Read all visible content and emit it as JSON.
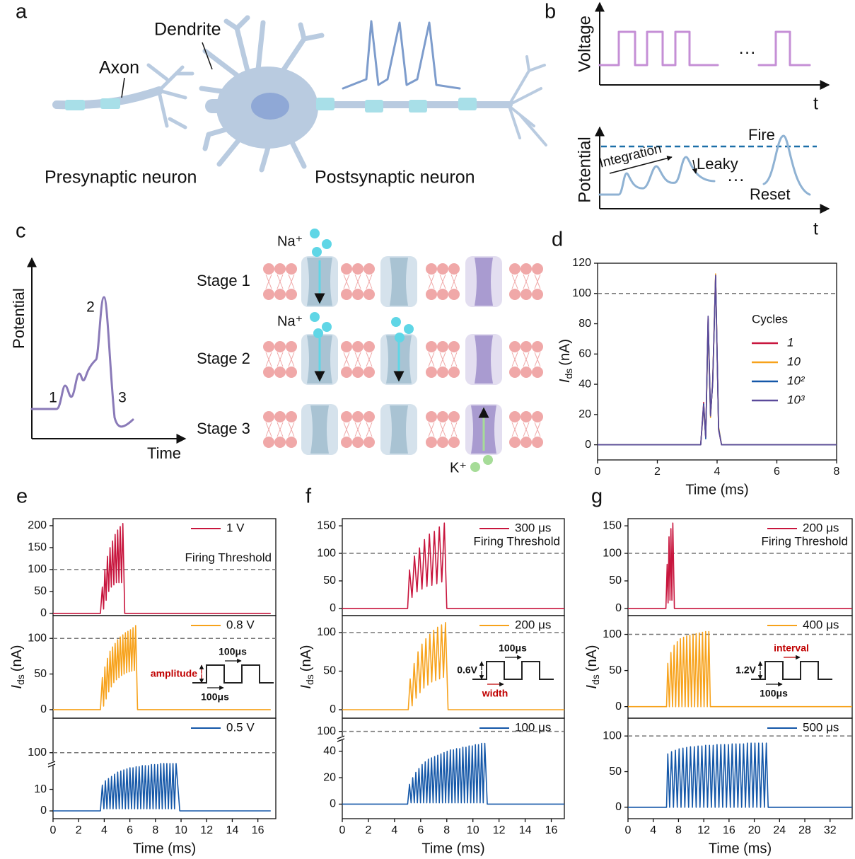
{
  "panels": {
    "a": {
      "label": "a",
      "dendrite": "Dendrite",
      "axon": "Axon",
      "presynaptic": "Presynaptic neuron",
      "postsynaptic": "Postsynaptic neuron"
    },
    "b": {
      "label": "b",
      "voltage": "Voltage",
      "t_top": "t",
      "dots_top": "···",
      "potential": "Potential",
      "integration": "Integration",
      "leaky": "Leaky",
      "fire": "Fire",
      "reset": "Reset",
      "dots_bottom": "···",
      "t_bottom": "t"
    },
    "c": {
      "label": "c",
      "potential": "Potential",
      "time": "Time",
      "points": [
        "1",
        "2",
        "3"
      ],
      "stages": [
        "Stage 1",
        "Stage 2",
        "Stage 3"
      ],
      "na_1": "Na⁺",
      "na_2": "Na⁺",
      "k": "K⁺"
    }
  },
  "chart_data": [
    {
      "type": "line",
      "panel_label": "d",
      "xlim": [
        0,
        8
      ],
      "xticks": [
        0,
        2,
        4,
        6,
        8
      ],
      "ylim": [
        -10,
        120
      ],
      "yticks": [
        0,
        20,
        40,
        60,
        80,
        100,
        120
      ],
      "threshold": 100,
      "xlabel": "Time (ms)",
      "ylabel": {
        "symbol": "I",
        "subscript": "ds",
        "unit": "(nA)"
      },
      "legend_title": "Cycles",
      "x": [
        0,
        3.45,
        3.55,
        3.62,
        3.7,
        3.78,
        3.85,
        3.95,
        4.05,
        4.15,
        8
      ],
      "series": [
        {
          "name": "1",
          "color": "#c8163e",
          "values": [
            0,
            0,
            28,
            5,
            84,
            20,
            40,
            112,
            10,
            0,
            0
          ]
        },
        {
          "name": "10",
          "color": "#f7a21b",
          "values": [
            0,
            0,
            25,
            5,
            80,
            18,
            42,
            113,
            12,
            0,
            0
          ]
        },
        {
          "name": "10²",
          "color": "#1457a8",
          "values": [
            0,
            0,
            27,
            4,
            83,
            20,
            40,
            111,
            11,
            0,
            0
          ]
        },
        {
          "name": "10³",
          "color": "#5a4a9a",
          "values": [
            0,
            0,
            26,
            5,
            85,
            19,
            41,
            112,
            10,
            0,
            0
          ]
        }
      ]
    },
    {
      "type": "line",
      "panel_label": "e",
      "xlim": [
        0,
        17.4
      ],
      "ylim": [
        -5,
        216
      ],
      "yticks": [
        0,
        50,
        100,
        150,
        200
      ],
      "threshold": 100,
      "threshold_label": "Firing Threshold",
      "x": [
        0,
        3.7,
        3.85,
        3.95,
        4.05,
        4.15,
        4.25,
        4.35,
        4.45,
        4.55,
        4.65,
        4.75,
        4.85,
        4.95,
        5.05,
        5.15,
        5.25,
        5.35,
        5.45,
        5.6,
        17
      ],
      "series": [
        {
          "name": "1 V",
          "color": "#c8163e",
          "values": [
            0,
            0,
            60,
            10,
            100,
            30,
            130,
            50,
            150,
            60,
            165,
            65,
            180,
            70,
            190,
            70,
            198,
            70,
            205,
            0,
            0
          ]
        }
      ]
    },
    {
      "type": "line",
      "xlim": [
        0,
        17.4
      ],
      "ylim": [
        -12,
        132
      ],
      "yticks": [
        0,
        50,
        100
      ],
      "threshold": 100,
      "ylabel": {
        "symbol": "I",
        "subscript": "ds",
        "unit": "(nA)"
      },
      "inset": {
        "top": "100μs",
        "left": "amplitude",
        "bottom": "100μs",
        "highlight": "left"
      },
      "x": [
        0,
        3.7,
        3.85,
        3.95,
        4.05,
        4.15,
        4.25,
        4.35,
        4.45,
        4.55,
        4.65,
        4.75,
        4.85,
        4.95,
        5.05,
        5.15,
        5.25,
        5.35,
        5.45,
        5.55,
        5.65,
        5.75,
        5.85,
        5.95,
        6.05,
        6.15,
        6.25,
        6.35,
        6.45,
        6.6,
        17
      ],
      "series": [
        {
          "name": "0.8 V",
          "color": "#f7a21b",
          "values": [
            0,
            0,
            45,
            5,
            60,
            15,
            72,
            25,
            82,
            32,
            88,
            38,
            93,
            42,
            98,
            45,
            102,
            48,
            105,
            50,
            108,
            52,
            110,
            53,
            112,
            54,
            115,
            55,
            118,
            0,
            0
          ]
        }
      ]
    },
    {
      "type": "line",
      "xlim": [
        0,
        17.4
      ],
      "xticks": [
        0,
        2,
        4,
        6,
        8,
        10,
        12,
        14,
        16
      ],
      "xlabel": "Time (ms)",
      "ylim": [
        -3.6,
        116
      ],
      "ybreak": [
        22,
        95
      ],
      "yticks": [
        0,
        10,
        100
      ],
      "threshold": 100,
      "x": [
        0,
        3.7,
        3.85,
        3.97,
        4.09,
        4.21,
        4.33,
        4.45,
        4.57,
        4.69,
        4.81,
        4.93,
        5.05,
        5.17,
        5.29,
        5.41,
        5.53,
        5.65,
        5.77,
        5.89,
        6.01,
        6.13,
        6.25,
        6.37,
        6.49,
        6.61,
        6.73,
        6.85,
        6.97,
        7.09,
        7.21,
        7.33,
        7.45,
        7.57,
        7.69,
        7.81,
        7.93,
        8.05,
        8.17,
        8.29,
        8.41,
        8.53,
        8.65,
        8.77,
        8.89,
        9.01,
        9.13,
        9.25,
        9.37,
        9.49,
        9.61,
        9.9,
        17
      ],
      "series": [
        {
          "name": "0.5 V",
          "color": "#1457a8",
          "values": [
            0,
            0,
            12,
            1,
            14,
            1,
            15,
            1,
            16,
            1,
            17,
            1,
            18,
            1,
            18.5,
            1,
            19,
            1,
            19.5,
            1,
            20,
            1,
            20,
            1,
            20.5,
            1,
            20.5,
            1,
            21,
            1,
            21,
            1,
            21,
            1,
            21.5,
            1,
            21.5,
            1,
            21.5,
            1,
            22,
            1,
            22,
            1,
            22,
            1,
            22,
            1,
            22,
            1,
            22,
            0,
            0
          ]
        }
      ]
    },
    {
      "type": "line",
      "panel_label": "f",
      "xlim": [
        0,
        17
      ],
      "ylim": [
        -13,
        163
      ],
      "yticks": [
        0,
        50,
        100,
        150
      ],
      "threshold": 100,
      "threshold_label": "Firing Threshold",
      "x": [
        0,
        5.0,
        5.15,
        5.34,
        5.53,
        5.72,
        5.91,
        6.1,
        6.29,
        6.48,
        6.67,
        6.86,
        7.05,
        7.24,
        7.43,
        7.62,
        7.81,
        8.0,
        17
      ],
      "series": [
        {
          "name": "300 μs",
          "color": "#c8163e",
          "values": [
            0,
            0,
            70,
            20,
            95,
            30,
            110,
            35,
            125,
            40,
            135,
            42,
            140,
            45,
            148,
            48,
            155,
            0,
            0
          ]
        }
      ]
    },
    {
      "type": "line",
      "xlim": [
        0,
        17
      ],
      "ylim": [
        -11,
        122
      ],
      "yticks": [
        0,
        50,
        100
      ],
      "threshold": 100,
      "ylabel": {
        "symbol": "I",
        "subscript": "ds",
        "unit": "(nA)"
      },
      "inset": {
        "top": "100μs",
        "left": "0.6V",
        "bottom": "width",
        "highlight": "bottom"
      },
      "x": [
        0,
        5.05,
        5.2,
        5.35,
        5.5,
        5.65,
        5.8,
        5.95,
        6.1,
        6.25,
        6.4,
        6.55,
        6.7,
        6.85,
        7.0,
        7.15,
        7.3,
        7.45,
        7.6,
        7.75,
        7.9,
        8.1,
        17
      ],
      "series": [
        {
          "name": "200 μs",
          "color": "#f7a21b",
          "values": [
            0,
            0,
            40,
            5,
            60,
            15,
            75,
            22,
            85,
            28,
            92,
            32,
            98,
            36,
            103,
            38,
            107,
            40,
            110,
            42,
            113,
            0,
            0
          ]
        }
      ]
    },
    {
      "type": "line",
      "xlim": [
        0,
        17
      ],
      "xticks": [
        0,
        2,
        4,
        6,
        8,
        10,
        12,
        14,
        16
      ],
      "xlabel": "Time (ms)",
      "ylim": [
        -11,
        110
      ],
      "ybreak": [
        50,
        95
      ],
      "yticks": [
        0,
        20,
        40,
        100
      ],
      "threshold": 100,
      "x": [
        0,
        5.0,
        5.15,
        5.27,
        5.39,
        5.51,
        5.63,
        5.75,
        5.87,
        5.99,
        6.11,
        6.23,
        6.35,
        6.47,
        6.59,
        6.71,
        6.83,
        6.95,
        7.07,
        7.19,
        7.31,
        7.43,
        7.55,
        7.67,
        7.79,
        7.91,
        8.03,
        8.15,
        8.27,
        8.39,
        8.51,
        8.63,
        8.75,
        8.87,
        8.99,
        9.11,
        9.23,
        9.35,
        9.47,
        9.59,
        9.71,
        9.83,
        9.95,
        10.07,
        10.19,
        10.31,
        10.43,
        10.55,
        10.67,
        10.79,
        10.91,
        11.1,
        17
      ],
      "series": [
        {
          "name": "100 μs",
          "color": "#1457a8",
          "values": [
            0,
            0,
            15,
            1,
            20,
            1,
            24,
            1,
            27,
            1,
            30,
            1,
            32,
            1,
            34,
            1,
            35,
            1,
            36,
            1,
            37,
            1,
            38,
            1,
            39,
            1,
            40,
            1,
            41,
            1,
            41,
            1,
            42,
            1,
            42,
            1,
            43,
            1,
            43,
            1,
            44,
            1,
            44,
            1,
            45,
            1,
            45,
            1,
            46,
            1,
            46,
            0,
            0
          ]
        }
      ]
    },
    {
      "type": "line",
      "panel_label": "g",
      "xlim": [
        0,
        35.5
      ],
      "ylim": [
        -13,
        163
      ],
      "yticks": [
        0,
        50,
        100,
        150
      ],
      "threshold": 100,
      "threshold_label": "Firing Threshold",
      "x": [
        0,
        6.0,
        6.2,
        6.35,
        6.5,
        6.65,
        6.8,
        6.95,
        7.1,
        7.35,
        35.5
      ],
      "series": [
        {
          "name": "200 μs",
          "color": "#c8163e",
          "values": [
            0,
            0,
            80,
            10,
            130,
            15,
            145,
            15,
            155,
            0,
            0
          ]
        }
      ]
    },
    {
      "type": "line",
      "xlim": [
        0,
        35.5
      ],
      "ylim": [
        -16,
        126
      ],
      "yticks": [
        0,
        50,
        100
      ],
      "threshold": 100,
      "ylabel": {
        "symbol": "I",
        "subscript": "ds",
        "unit": "(nA)"
      },
      "inset": {
        "top": "interval",
        "left": "1.2V",
        "bottom": "100μs",
        "highlight": "top"
      },
      "x": [
        0,
        6.1,
        6.3,
        6.55,
        6.8,
        7.05,
        7.3,
        7.55,
        7.8,
        8.05,
        8.3,
        8.55,
        8.8,
        9.05,
        9.3,
        9.55,
        9.8,
        10.05,
        10.3,
        10.55,
        10.8,
        11.05,
        11.3,
        11.55,
        11.8,
        12.05,
        12.3,
        12.55,
        12.8,
        13.05,
        35.5
      ],
      "series": [
        {
          "name": "400 μs",
          "color": "#f7a21b",
          "values": [
            0,
            0,
            60,
            0,
            75,
            0,
            85,
            0,
            90,
            0,
            94,
            0,
            96,
            0,
            98,
            0,
            99,
            0,
            100,
            0,
            101,
            0,
            102,
            0,
            103,
            0,
            104,
            0,
            104,
            0,
            0
          ]
        }
      ]
    },
    {
      "type": "line",
      "xlim": [
        0,
        35.5
      ],
      "xticks": [
        0,
        4,
        8,
        12,
        16,
        20,
        24,
        28,
        32
      ],
      "xlabel": "Time (ms)",
      "ylim": [
        -16,
        125
      ],
      "yticks": [
        0,
        50,
        100
      ],
      "threshold": 100,
      "x": [
        0,
        6.1,
        6.3,
        6.6,
        6.9,
        7.2,
        7.5,
        7.8,
        8.1,
        8.4,
        8.7,
        9.0,
        9.3,
        9.6,
        9.9,
        10.2,
        10.5,
        10.8,
        11.1,
        11.4,
        11.7,
        12.0,
        12.3,
        12.6,
        12.9,
        13.2,
        13.5,
        13.8,
        14.1,
        14.4,
        14.7,
        15.0,
        15.3,
        15.6,
        15.9,
        16.2,
        16.5,
        16.8,
        17.1,
        17.4,
        17.7,
        18.0,
        18.3,
        18.6,
        18.9,
        19.2,
        19.5,
        19.8,
        20.1,
        20.4,
        20.7,
        21.0,
        21.3,
        21.6,
        21.9,
        22.2,
        35.5
      ],
      "series": [
        {
          "name": "500 μs",
          "color": "#1457a8",
          "values": [
            0,
            0,
            75,
            0,
            78,
            0,
            80,
            0,
            82,
            0,
            83,
            0,
            84,
            0,
            85,
            0,
            85,
            0,
            86,
            0,
            86,
            0,
            87,
            0,
            87,
            0,
            87,
            0,
            88,
            0,
            88,
            0,
            88,
            0,
            88,
            0,
            89,
            0,
            89,
            0,
            89,
            0,
            89,
            0,
            90,
            0,
            90,
            0,
            90,
            0,
            90,
            0,
            90,
            0,
            90,
            0,
            0
          ]
        }
      ]
    }
  ]
}
